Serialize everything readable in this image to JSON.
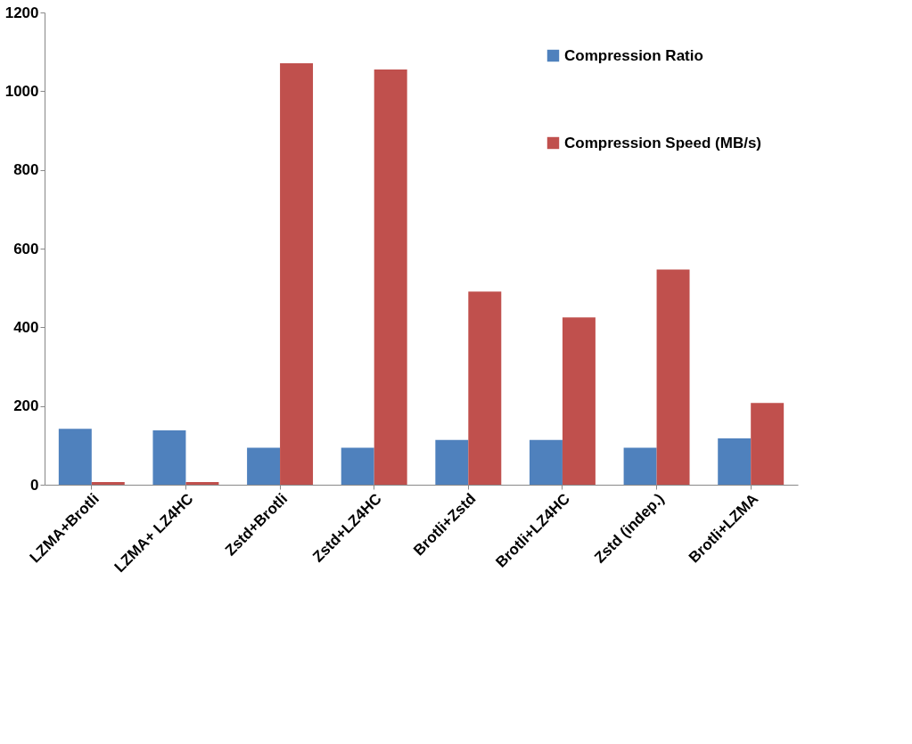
{
  "chart_data": {
    "type": "bar",
    "categories": [
      "LZMA+Brotli",
      "LZMA+ LZ4HC",
      "Zstd+Brotli",
      "Zstd+LZ4HC",
      "Brotli+Zstd",
      "Brotli+LZ4HC",
      "Zstd (indep.)",
      "Brotli+LZMA"
    ],
    "series": [
      {
        "name": "Compression Ratio",
        "color": "#4f81bd",
        "values": [
          142,
          138,
          94,
          94,
          114,
          114,
          94,
          118
        ]
      },
      {
        "name": "Compression Speed (MB/s)",
        "color": "#c0504d",
        "values": [
          7,
          7,
          1071,
          1055,
          491,
          425,
          547,
          208
        ]
      }
    ],
    "ylim": [
      0,
      1200
    ],
    "yticks": [
      0,
      200,
      400,
      600,
      800,
      1000,
      1200
    ],
    "grid": false,
    "legend": "top right"
  }
}
